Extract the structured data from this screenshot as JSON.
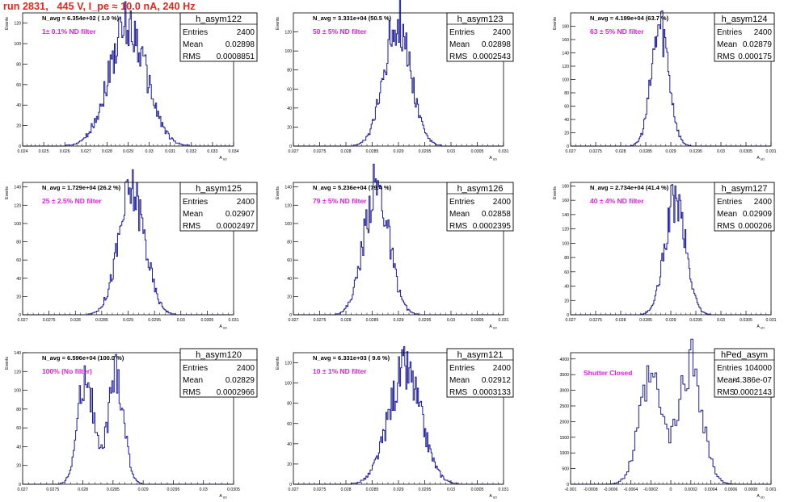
{
  "run_title": "run 2831,   445 V, I_pe ≈ 10.0 nA, 240 Hz",
  "colors": {
    "histogram": "#1a1a9c",
    "annotation": "#e61ee6",
    "title": "#e8241c",
    "frame": "#000000"
  },
  "chart_data": [
    {
      "type": "bar",
      "name": "h_asym122",
      "stats": {
        "entries_label": "Entries",
        "entries": "2400",
        "mean_label": "Mean",
        "mean": "0.02898",
        "rms_label": "RMS",
        "rms": "0.0008851"
      },
      "navg_text": "N_avg = 6.354e+02 ( 1.0 %)",
      "filter_text": "1± 0.1% ND filter",
      "ylabel": "Events",
      "xlabel": "A_UD",
      "xlim": [
        0.024,
        0.034
      ],
      "ylim": [
        0,
        130
      ],
      "yticks": [
        0,
        20,
        40,
        60,
        80,
        100,
        120
      ],
      "xticks": [
        "0.024",
        "0.025",
        "0.026",
        "0.027",
        "0.028",
        "0.029",
        "0.03",
        "0.031",
        "0.032",
        "0.033",
        "0.034"
      ],
      "xtick_values": [
        0.024,
        0.025,
        0.026,
        0.027,
        0.028,
        0.029,
        0.03,
        0.031,
        0.032,
        0.033,
        0.034
      ],
      "dist": {
        "mean": 0.02898,
        "sigma": 0.00088,
        "peak": 118,
        "bins": 200,
        "seed": 122
      }
    },
    {
      "type": "bar",
      "name": "h_asym123",
      "stats": {
        "entries_label": "Entries",
        "entries": "2400",
        "mean_label": "Mean",
        "mean": "0.02898",
        "rms_label": "RMS",
        "rms": "0.0002543"
      },
      "navg_text": "N_avg = 3.331e+04 (50.5 %)",
      "filter_text": "50 ± 5% ND filter",
      "ylabel": "Events",
      "xlabel": "A_UD",
      "xlim": [
        0.027,
        0.031
      ],
      "ylim": [
        0,
        140
      ],
      "yticks": [
        0,
        20,
        40,
        60,
        80,
        100,
        120
      ],
      "xticks": [
        "0.027",
        "0.0275",
        "0.028",
        "0.0285",
        "0.029",
        "0.0295",
        "0.03",
        "0.0305",
        "0.031"
      ],
      "xtick_values": [
        0.027,
        0.0275,
        0.028,
        0.0285,
        0.029,
        0.0295,
        0.03,
        0.0305,
        0.031
      ],
      "dist": {
        "mean": 0.02898,
        "sigma": 0.000254,
        "peak": 132,
        "bins": 200,
        "seed": 123
      }
    },
    {
      "type": "bar",
      "name": "h_asym124",
      "stats": {
        "entries_label": "Entries",
        "entries": "2400",
        "mean_label": "Mean",
        "mean": "0.02879",
        "rms_label": "RMS",
        "rms": "0.000175"
      },
      "navg_text": "N_avg = 4.199e+04 (63.7 %)",
      "filter_text": "63 ± 5% ND filter",
      "ylabel": "Events",
      "xlabel": "A_UD",
      "xlim": [
        0.027,
        0.031
      ],
      "ylim": [
        0,
        200
      ],
      "yticks": [
        0,
        20,
        40,
        60,
        80,
        100,
        120,
        140,
        160,
        180
      ],
      "xticks": [
        "0.027",
        "0.0275",
        "0.028",
        "0.0285",
        "0.029",
        "0.0295",
        "0.03",
        "0.0305",
        "0.031"
      ],
      "xtick_values": [
        0.027,
        0.0275,
        0.028,
        0.0285,
        0.029,
        0.0295,
        0.03,
        0.0305,
        0.031
      ],
      "dist": {
        "mean": 0.02879,
        "sigma": 0.000175,
        "peak": 182,
        "bins": 200,
        "seed": 124
      }
    },
    {
      "type": "bar",
      "name": "h_asym125",
      "stats": {
        "entries_label": "Entries",
        "entries": "2400",
        "mean_label": "Mean",
        "mean": "0.02907",
        "rms_label": "RMS",
        "rms": "0.0002497"
      },
      "navg_text": "N_avg = 1.729e+04 (26.2 %)",
      "filter_text": "25 ± 2.5% ND filter",
      "ylabel": "Events",
      "xlabel": "A_UD",
      "xlim": [
        0.027,
        0.031
      ],
      "ylim": [
        0,
        145
      ],
      "yticks": [
        0,
        20,
        40,
        60,
        80,
        100,
        120,
        140
      ],
      "xticks": [
        "0.027",
        "0.0275",
        "0.028",
        "0.0285",
        "0.029",
        "0.0295",
        "0.03",
        "0.0305",
        "0.031"
      ],
      "xtick_values": [
        0.027,
        0.0275,
        0.028,
        0.0285,
        0.029,
        0.0295,
        0.03,
        0.0305,
        0.031
      ],
      "dist": {
        "mean": 0.02907,
        "sigma": 0.00025,
        "peak": 136,
        "bins": 200,
        "seed": 125
      }
    },
    {
      "type": "bar",
      "name": "h_asym126",
      "stats": {
        "entries_label": "Entries",
        "entries": "2400",
        "mean_label": "Mean",
        "mean": "0.02858",
        "rms_label": "RMS",
        "rms": "0.0002395"
      },
      "navg_text": "N_avg = 5.236e+04 (79.4 %)",
      "filter_text": "79 ± 5% ND filter",
      "ylabel": "Events",
      "xlabel": "A_UD",
      "xlim": [
        0.027,
        0.031
      ],
      "ylim": [
        0,
        145
      ],
      "yticks": [
        0,
        20,
        40,
        60,
        80,
        100,
        120,
        140
      ],
      "xticks": [
        "0.027",
        "0.0275",
        "0.028",
        "0.0285",
        "0.029",
        "0.0295",
        "0.03",
        "0.0305",
        "0.031"
      ],
      "xtick_values": [
        0.027,
        0.0275,
        0.028,
        0.0285,
        0.029,
        0.0295,
        0.03,
        0.0305,
        0.031
      ],
      "dist": {
        "mean": 0.02858,
        "sigma": 0.00024,
        "peak": 138,
        "bins": 200,
        "seed": 126
      }
    },
    {
      "type": "bar",
      "name": "h_asym127",
      "stats": {
        "entries_label": "Entries",
        "entries": "2400",
        "mean_label": "Mean",
        "mean": "0.02909",
        "rms_label": "RMS",
        "rms": "0.000206"
      },
      "navg_text": "N_avg = 2.734e+04 (41.4 %)",
      "filter_text": "40 ± 4% ND filter",
      "ylabel": "Events",
      "xlabel": "A_UD",
      "xlim": [
        0.027,
        0.031
      ],
      "ylim": [
        0,
        185
      ],
      "yticks": [
        0,
        20,
        40,
        60,
        80,
        100,
        120,
        140,
        160,
        180
      ],
      "xticks": [
        "0.027",
        "0.0275",
        "0.028",
        "0.0285",
        "0.029",
        "0.0295",
        "0.03",
        "0.0305",
        "0.031"
      ],
      "xtick_values": [
        0.027,
        0.0275,
        0.028,
        0.0285,
        0.029,
        0.0295,
        0.03,
        0.0305,
        0.031
      ],
      "dist": {
        "mean": 0.02909,
        "sigma": 0.000206,
        "peak": 160,
        "bins": 200,
        "seed": 127
      }
    },
    {
      "type": "bar",
      "name": "h_asym120",
      "stats": {
        "entries_label": "Entries",
        "entries": "2400",
        "mean_label": "Mean",
        "mean": "0.02829",
        "rms_label": "RMS",
        "rms": "0.0002966"
      },
      "navg_text": "N_avg = 6.596e+04 (100.0 %)",
      "filter_text": "100% (No filter)",
      "ylabel": "Events",
      "xlabel": "A_UD",
      "xlim": [
        0.027,
        0.0305
      ],
      "ylim": [
        0,
        140
      ],
      "yticks": [
        0,
        20,
        40,
        60,
        80,
        100,
        120,
        140
      ],
      "xticks": [
        "0.027",
        "0.0275",
        "0.028",
        "0.0285",
        "0.029",
        "0.0295",
        "0.03",
        "0.0305"
      ],
      "xtick_values": [
        0.027,
        0.0275,
        0.028,
        0.0285,
        0.029,
        0.0295,
        0.03,
        0.0305
      ],
      "dist": {
        "bimodal": [
          0.02805,
          0.02855
        ],
        "sigma": 0.00013,
        "peak": 118,
        "bins": 175,
        "seed": 120
      }
    },
    {
      "type": "bar",
      "name": "h_asym121",
      "stats": {
        "entries_label": "Entries",
        "entries": "2400",
        "mean_label": "Mean",
        "mean": "0.02912",
        "rms_label": "RMS",
        "rms": "0.0003133"
      },
      "navg_text": "N_avg = 6.331e+03 ( 9.6 %)",
      "filter_text": "10 ± 1% ND filter",
      "ylabel": "Events",
      "xlabel": "A_UD",
      "xlim": [
        0.027,
        0.031
      ],
      "ylim": [
        0,
        130
      ],
      "yticks": [
        0,
        20,
        40,
        60,
        80,
        100,
        120
      ],
      "xticks": [
        "0.027",
        "0.0275",
        "0.028",
        "0.0285",
        "0.029",
        "0.0295",
        "0.03",
        "0.0305",
        "0.031"
      ],
      "xtick_values": [
        0.027,
        0.0275,
        0.028,
        0.0285,
        0.029,
        0.0295,
        0.03,
        0.0305,
        0.031
      ],
      "dist": {
        "mean": 0.02912,
        "sigma": 0.00031,
        "peak": 112,
        "bins": 200,
        "seed": 121
      }
    },
    {
      "type": "bar",
      "name": "hPed_asym",
      "stats": {
        "entries_label": "Entries",
        "entries": "104000",
        "mean_label": "Mean",
        "mean": "-4.386e-07",
        "rms_label": "RMS",
        "rms": "0.0002143"
      },
      "navg_text": "",
      "filter_text": "Shutter Closed",
      "ylabel": "",
      "xlabel": "A_UD",
      "xlim": [
        -0.001,
        0.001
      ],
      "ylim": [
        0,
        4200
      ],
      "yticks": [
        0,
        500,
        1000,
        1500,
        2000,
        2500,
        3000,
        3500,
        4000
      ],
      "xticks": [
        "-0.001",
        "-0.0008",
        "-0.0006",
        "-0.0004",
        "-0.0002",
        "0",
        "0.0002",
        "0.0004",
        "0.0006",
        "0.0008",
        "0.001"
      ],
      "xtick_values": [
        -0.001,
        -0.0008,
        -0.0006,
        -0.0004,
        -0.0002,
        0,
        0.0002,
        0.0004,
        0.0006,
        0.0008,
        0.001
      ],
      "dist": {
        "bimodal": [
          -0.0002,
          0.0002
        ],
        "sigma": 0.000115,
        "peak": 3900,
        "second_peak": 3300,
        "bins": 100,
        "seed": 99
      }
    }
  ]
}
